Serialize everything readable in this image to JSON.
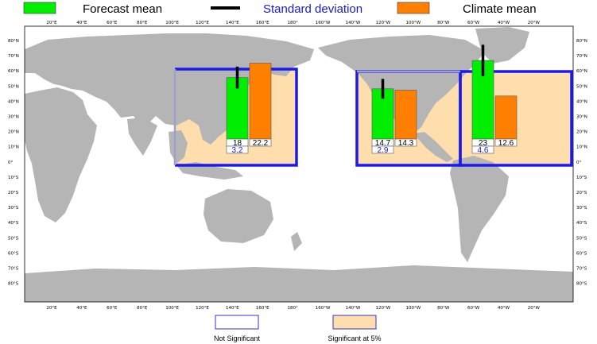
{
  "legend": {
    "forecast_label": "Forecast mean",
    "sd_label": "Standard deviation",
    "climate_label": "Climate mean"
  },
  "colors": {
    "forecast": "#00ee00",
    "climate": "#ff7f00",
    "sd_line": "#000000",
    "region_fill_significant": "#ffdead",
    "region_border": "#1a1aee",
    "land": "#b5b5b5",
    "ocean": "#ffffff"
  },
  "bottom_legend": {
    "not_significant_label": "Not Significant",
    "significant_label": "Significant at 5%"
  },
  "chart_data": {
    "type": "bar",
    "title": "",
    "xlabel": "",
    "ylabel": "",
    "x_ticks_top": [
      "20°E",
      "40°E",
      "60°E",
      "80°E",
      "100°E",
      "120°E",
      "140°E",
      "160°E",
      "180°",
      "160°W",
      "140°W",
      "120°W",
      "100°W",
      "80°W",
      "60°W",
      "40°W",
      "20°W"
    ],
    "x_ticks_bottom": [
      "20°E",
      "40°E",
      "60°E",
      "80°E",
      "100°E",
      "120°E",
      "140°E",
      "160°E",
      "180°",
      "160°W",
      "140°W",
      "120°W",
      "100°W",
      "80°W",
      "60°W",
      "40°W",
      "20°W"
    ],
    "y_ticks_left": [
      "80°N",
      "70°N",
      "60°N",
      "50°N",
      "40°N",
      "30°N",
      "20°N",
      "10°N",
      "0°",
      "10°S",
      "20°S",
      "30°S",
      "40°S",
      "50°S",
      "60°S",
      "70°S",
      "80°S"
    ],
    "y_ticks_right": [
      "80°N",
      "70°N",
      "60°N",
      "50°N",
      "40°N",
      "30°N",
      "20°N",
      "10°N",
      "0°",
      "10°S",
      "20°S",
      "30°S",
      "40°S",
      "50°S",
      "60°S",
      "70°S",
      "80°S"
    ],
    "regions": [
      {
        "id": "west-pacific",
        "significant": true,
        "forecast_mean": 18,
        "climate_mean": 22.2,
        "std_dev": 3.2,
        "forecast_label": "18",
        "climate_label": "22.2",
        "sd_label": "3.2"
      },
      {
        "id": "east-pacific",
        "significant": true,
        "forecast_mean": 14.7,
        "climate_mean": 14.3,
        "std_dev": 2.9,
        "forecast_label": "14.7",
        "climate_label": "14.3",
        "sd_label": "2.9"
      },
      {
        "id": "atlantic",
        "significant": true,
        "forecast_mean": 23,
        "climate_mean": 12.6,
        "std_dev": 4.6,
        "forecast_label": "23",
        "climate_label": "12.6",
        "sd_label": "4.6"
      }
    ]
  }
}
